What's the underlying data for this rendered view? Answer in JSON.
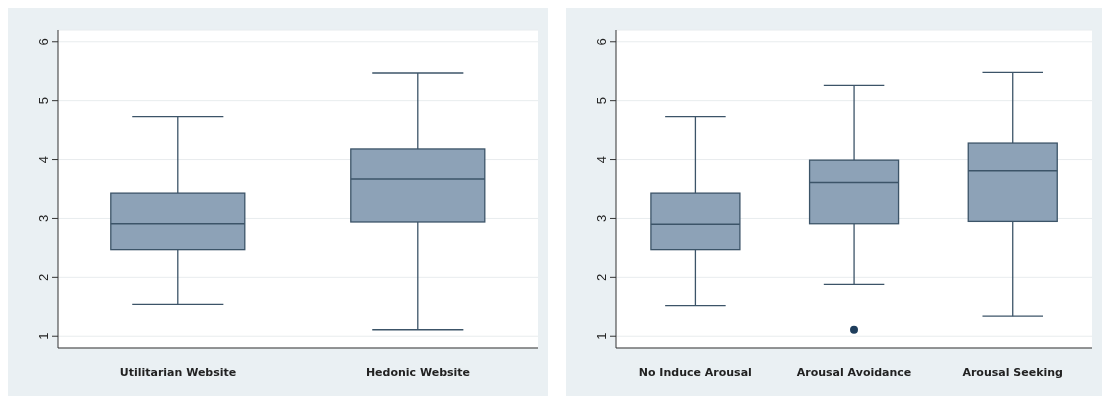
{
  "chart_data": [
    {
      "type": "box",
      "categories": [
        "Utilitarian Website",
        "Hedonic Website"
      ],
      "color": "#8da2b7",
      "ylim": [
        0.8,
        6.2
      ],
      "yticks": [
        1,
        2,
        3,
        4,
        5,
        6
      ],
      "grid": "y",
      "boxes": [
        {
          "low": 1.54,
          "q1": 2.47,
          "median": 2.91,
          "q3": 3.43,
          "high": 4.73
        },
        {
          "low": 1.11,
          "q1": 2.94,
          "median": 3.67,
          "q3": 4.18,
          "high": 5.47
        }
      ]
    },
    {
      "type": "box",
      "categories": [
        "No Induce Arousal",
        "Arousal Avoidance",
        "Arousal Seeking"
      ],
      "color": "#8da2b7",
      "ylim": [
        0.8,
        6.2
      ],
      "yticks": [
        1,
        2,
        3,
        4,
        5,
        6
      ],
      "grid": "y",
      "boxes": [
        {
          "low": 1.52,
          "q1": 2.47,
          "median": 2.9,
          "q3": 3.43,
          "high": 4.73
        },
        {
          "low": 1.88,
          "q1": 2.91,
          "median": 3.61,
          "q3": 3.99,
          "high": 5.26,
          "outliers": [
            1.11
          ]
        },
        {
          "low": 1.34,
          "q1": 2.95,
          "median": 3.81,
          "q3": 4.28,
          "high": 5.48
        }
      ]
    }
  ]
}
